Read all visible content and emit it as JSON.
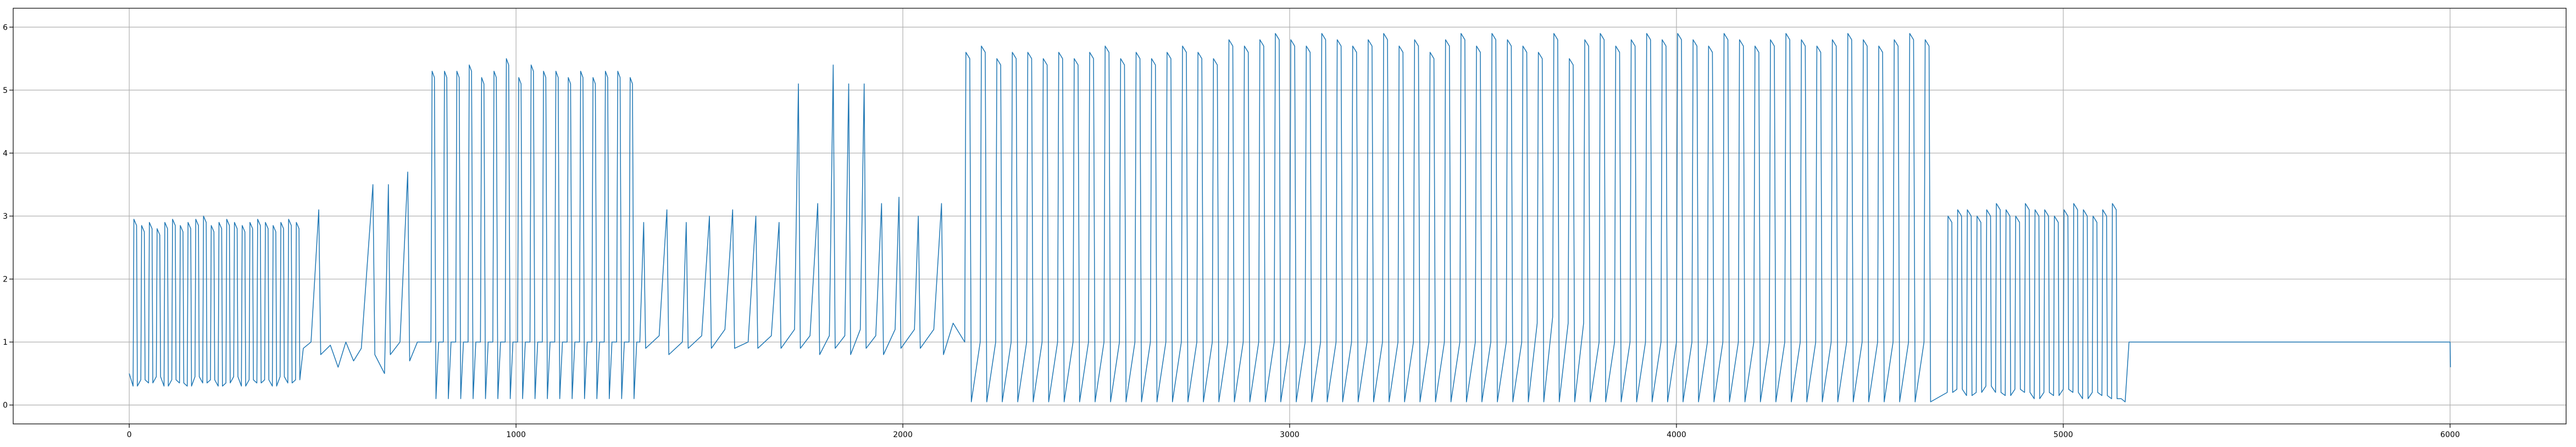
{
  "chart_data": {
    "type": "line",
    "color": "#1f77b4",
    "grid": true,
    "xlim": [
      -300,
      6300
    ],
    "xticks": [
      0,
      1000,
      2000,
      3000,
      4000,
      5000,
      6000
    ],
    "ylim": [
      -0.3,
      6.3
    ],
    "yticks": [
      0,
      1,
      2,
      3,
      4,
      5,
      6
    ],
    "x": [
      0,
      10,
      12,
      19,
      21,
      30,
      32,
      39,
      41,
      50,
      52,
      59,
      61,
      70,
      72,
      79,
      81,
      90,
      92,
      99,
      101,
      110,
      112,
      119,
      121,
      130,
      132,
      139,
      141,
      150,
      152,
      159,
      161,
      170,
      172,
      179,
      181,
      190,
      192,
      199,
      201,
      210,
      212,
      219,
      221,
      230,
      232,
      239,
      241,
      250,
      252,
      259,
      261,
      270,
      272,
      279,
      281,
      290,
      292,
      299,
      301,
      310,
      312,
      319,
      321,
      330,
      332,
      339,
      341,
      350,
      352,
      359,
      361,
      370,
      372,
      379,
      381,
      390,
      392,
      399,
      401,
      410,
      412,
      419,
      421,
      430,
      432,
      439,
      441,
      450,
      470,
      490,
      495,
      520,
      540,
      560,
      580,
      600,
      630,
      635,
      660,
      670,
      675,
      700,
      720,
      725,
      745,
      780,
      783,
      789,
      793,
      800,
      812,
      815,
      821,
      825,
      832,
      844,
      847,
      853,
      857,
      864,
      876,
      879,
      885,
      889,
      896,
      908,
      911,
      917,
      921,
      928,
      940,
      943,
      949,
      953,
      960,
      972,
      975,
      981,
      985,
      992,
      1004,
      1007,
      1013,
      1017,
      1024,
      1036,
      1039,
      1045,
      1049,
      1056,
      1068,
      1071,
      1077,
      1081,
      1088,
      1100,
      1103,
      1109,
      1113,
      1120,
      1132,
      1135,
      1141,
      1145,
      1152,
      1164,
      1167,
      1173,
      1177,
      1184,
      1196,
      1199,
      1205,
      1209,
      1216,
      1228,
      1231,
      1237,
      1241,
      1248,
      1260,
      1263,
      1269,
      1273,
      1280,
      1292,
      1295,
      1301,
      1305,
      1312,
      1320,
      1330,
      1335,
      1370,
      1390,
      1395,
      1430,
      1440,
      1445,
      1480,
      1500,
      1505,
      1540,
      1560,
      1565,
      1600,
      1620,
      1625,
      1660,
      1680,
      1685,
      1720,
      1730,
      1735,
      1760,
      1780,
      1785,
      1810,
      1820,
      1825,
      1850,
      1860,
      1865,
      1890,
      1900,
      1905,
      1930,
      1945,
      1950,
      1980,
      1990,
      1995,
      2030,
      2040,
      2045,
      2080,
      2100,
      2105,
      2130,
      2160,
      2163,
      2173,
      2177,
      2200,
      2203,
      2213,
      2217,
      2240,
      2243,
      2253,
      2257,
      2280,
      2283,
      2293,
      2297,
      2320,
      2323,
      2333,
      2337,
      2360,
      2363,
      2373,
      2377,
      2400,
      2403,
      2413,
      2417,
      2440,
      2443,
      2453,
      2457,
      2480,
      2483,
      2493,
      2497,
      2520,
      2523,
      2533,
      2537,
      2560,
      2563,
      2573,
      2577,
      2600,
      2603,
      2613,
      2617,
      2640,
      2643,
      2653,
      2657,
      2680,
      2683,
      2693,
      2697,
      2720,
      2723,
      2733,
      2737,
      2760,
      2763,
      2773,
      2777,
      2800,
      2803,
      2813,
      2817,
      2840,
      2843,
      2853,
      2857,
      2880,
      2883,
      2893,
      2897,
      2920,
      2923,
      2933,
      2937,
      2960,
      2963,
      2973,
      2977,
      3000,
      3003,
      3013,
      3017,
      3040,
      3043,
      3053,
      3057,
      3080,
      3083,
      3093,
      3097,
      3120,
      3123,
      3133,
      3137,
      3160,
      3163,
      3173,
      3177,
      3200,
      3203,
      3213,
      3217,
      3240,
      3243,
      3253,
      3257,
      3280,
      3283,
      3293,
      3297,
      3320,
      3323,
      3333,
      3337,
      3360,
      3363,
      3373,
      3377,
      3400,
      3403,
      3413,
      3417,
      3440,
      3443,
      3453,
      3457,
      3480,
      3483,
      3493,
      3497,
      3520,
      3523,
      3533,
      3537,
      3560,
      3563,
      3573,
      3577,
      3600,
      3603,
      3613,
      3617,
      3640,
      3643,
      3653,
      3657,
      3680,
      3683,
      3693,
      3697,
      3720,
      3723,
      3733,
      3737,
      3760,
      3763,
      3773,
      3777,
      3800,
      3803,
      3813,
      3817,
      3840,
      3843,
      3853,
      3857,
      3880,
      3883,
      3893,
      3897,
      3920,
      3923,
      3933,
      3937,
      3960,
      3963,
      3973,
      3977,
      4000,
      4003,
      4013,
      4017,
      4040,
      4043,
      4053,
      4057,
      4080,
      4083,
      4093,
      4097,
      4120,
      4123,
      4133,
      4137,
      4160,
      4163,
      4173,
      4177,
      4200,
      4203,
      4213,
      4217,
      4240,
      4243,
      4253,
      4257,
      4280,
      4283,
      4293,
      4297,
      4320,
      4323,
      4333,
      4337,
      4360,
      4363,
      4373,
      4377,
      4400,
      4403,
      4413,
      4417,
      4440,
      4443,
      4453,
      4457,
      4480,
      4483,
      4493,
      4497,
      4520,
      4523,
      4533,
      4537,
      4560,
      4563,
      4573,
      4577,
      4600,
      4603,
      4613,
      4617,
      4640,
      4643,
      4653,
      4657,
      4700,
      4702,
      4712,
      4714,
      4725,
      4727,
      4737,
      4739,
      4750,
      4752,
      4762,
      4764,
      4775,
      4777,
      4787,
      4789,
      4800,
      4802,
      4812,
      4814,
      4825,
      4827,
      4837,
      4839,
      4850,
      4852,
      4862,
      4864,
      4875,
      4877,
      4887,
      4889,
      4900,
      4902,
      4912,
      4914,
      4925,
      4927,
      4937,
      4939,
      4950,
      4952,
      4962,
      4964,
      4975,
      4977,
      4987,
      4989,
      5000,
      5002,
      5012,
      5014,
      5025,
      5027,
      5037,
      5039,
      5050,
      5052,
      5062,
      5064,
      5075,
      5077,
      5087,
      5089,
      5100,
      5102,
      5112,
      5114,
      5125,
      5127,
      5137,
      5139,
      5150,
      5160,
      5170,
      6000,
      6001
    ],
    "values": [
      0.5,
      0.3,
      2.95,
      2.85,
      0.3,
      0.4,
      2.85,
      2.75,
      0.4,
      0.35,
      2.9,
      2.8,
      0.35,
      0.45,
      2.8,
      2.7,
      0.45,
      0.3,
      2.9,
      2.8,
      0.3,
      0.4,
      2.95,
      2.85,
      0.4,
      0.35,
      2.85,
      2.75,
      0.35,
      0.3,
      2.9,
      2.8,
      0.3,
      0.45,
      2.95,
      2.85,
      0.45,
      0.35,
      3.0,
      2.9,
      0.35,
      0.4,
      2.85,
      2.75,
      0.4,
      0.3,
      2.9,
      2.8,
      0.3,
      0.35,
      2.95,
      2.85,
      0.35,
      0.45,
      2.9,
      2.8,
      0.45,
      0.3,
      2.85,
      2.75,
      0.3,
      0.4,
      2.9,
      2.8,
      0.4,
      0.35,
      2.95,
      2.85,
      0.35,
      0.4,
      2.9,
      2.8,
      0.4,
      0.3,
      2.85,
      2.75,
      0.3,
      0.45,
      2.9,
      2.8,
      0.45,
      0.35,
      2.95,
      2.85,
      0.35,
      0.4,
      2.9,
      2.8,
      0.4,
      0.9,
      1.0,
      3.1,
      0.8,
      0.95,
      0.6,
      1.0,
      0.7,
      0.9,
      3.5,
      0.8,
      0.5,
      3.5,
      0.8,
      1.0,
      3.7,
      0.7,
      1.0,
      1.0,
      5.3,
      5.2,
      0.1,
      1.0,
      1.0,
      5.3,
      5.2,
      0.1,
      1.0,
      1.0,
      5.3,
      5.2,
      0.1,
      1.0,
      1.0,
      5.4,
      5.3,
      0.1,
      1.0,
      1.0,
      5.2,
      5.1,
      0.1,
      1.0,
      1.0,
      5.3,
      5.2,
      0.1,
      1.0,
      1.0,
      5.5,
      5.4,
      0.1,
      1.0,
      1.0,
      5.2,
      5.1,
      0.1,
      1.0,
      1.0,
      5.4,
      5.3,
      0.1,
      1.0,
      1.0,
      5.3,
      5.2,
      0.1,
      1.0,
      1.0,
      5.3,
      5.2,
      0.1,
      1.0,
      1.0,
      5.2,
      5.1,
      0.1,
      1.0,
      1.0,
      5.3,
      5.2,
      0.1,
      1.0,
      1.0,
      5.2,
      5.1,
      0.1,
      1.0,
      1.0,
      5.3,
      5.2,
      0.1,
      1.0,
      1.0,
      5.3,
      5.2,
      0.1,
      1.0,
      1.0,
      5.2,
      5.1,
      0.1,
      1.0,
      1.0,
      2.9,
      0.9,
      1.1,
      3.1,
      0.8,
      1.0,
      2.9,
      0.9,
      1.1,
      3.0,
      0.9,
      1.2,
      3.1,
      0.9,
      1.0,
      3.0,
      0.9,
      1.1,
      2.9,
      0.9,
      1.2,
      5.1,
      0.9,
      1.1,
      3.2,
      0.8,
      1.1,
      5.4,
      0.9,
      1.1,
      5.1,
      0.8,
      1.2,
      5.1,
      0.9,
      1.1,
      3.2,
      0.8,
      1.2,
      3.3,
      0.9,
      1.2,
      3.0,
      0.9,
      1.2,
      3.2,
      0.8,
      1.3,
      1.0,
      5.6,
      5.5,
      0.05,
      1.0,
      5.7,
      5.6,
      0.05,
      1.0,
      5.5,
      5.4,
      0.05,
      1.0,
      5.6,
      5.5,
      0.05,
      1.0,
      5.6,
      5.5,
      0.05,
      1.0,
      5.5,
      5.4,
      0.05,
      1.0,
      5.6,
      5.5,
      0.05,
      1.0,
      5.5,
      5.4,
      0.05,
      1.0,
      5.6,
      5.5,
      0.05,
      1.0,
      5.7,
      5.6,
      0.05,
      1.0,
      5.5,
      5.4,
      0.05,
      1.0,
      5.6,
      5.5,
      0.05,
      1.0,
      5.5,
      5.4,
      0.05,
      1.0,
      5.6,
      5.5,
      0.05,
      1.0,
      5.7,
      5.6,
      0.05,
      1.0,
      5.6,
      5.5,
      0.05,
      1.0,
      5.5,
      5.4,
      0.05,
      1.0,
      5.8,
      5.7,
      0.05,
      1.0,
      5.7,
      5.6,
      0.05,
      1.0,
      5.8,
      5.7,
      0.05,
      1.0,
      5.9,
      5.8,
      0.05,
      1.0,
      5.8,
      5.7,
      0.05,
      1.0,
      5.7,
      5.6,
      0.05,
      1.0,
      5.9,
      5.8,
      0.05,
      1.0,
      5.8,
      5.7,
      0.05,
      1.0,
      5.7,
      5.6,
      0.05,
      1.0,
      5.8,
      5.7,
      0.05,
      1.0,
      5.9,
      5.8,
      0.05,
      1.0,
      5.7,
      5.6,
      0.05,
      1.0,
      5.8,
      5.7,
      0.05,
      1.0,
      5.6,
      5.5,
      0.05,
      1.0,
      5.8,
      5.7,
      0.05,
      1.0,
      5.9,
      5.8,
      0.05,
      1.0,
      5.7,
      5.6,
      0.05,
      1.0,
      5.9,
      5.8,
      0.05,
      1.0,
      5.8,
      5.7,
      0.05,
      1.0,
      5.7,
      5.6,
      0.05,
      1.3,
      5.6,
      5.5,
      0.05,
      1.4,
      5.9,
      5.8,
      0.05,
      1.3,
      5.5,
      5.4,
      0.05,
      1.3,
      5.8,
      5.7,
      0.05,
      1.0,
      5.9,
      5.8,
      0.05,
      1.0,
      5.7,
      5.6,
      0.05,
      1.0,
      5.8,
      5.7,
      0.05,
      1.0,
      5.9,
      5.8,
      0.05,
      1.0,
      5.8,
      5.7,
      0.05,
      1.0,
      5.9,
      5.8,
      0.05,
      1.0,
      5.8,
      5.7,
      0.05,
      1.0,
      5.7,
      5.6,
      0.05,
      1.0,
      5.9,
      5.8,
      0.05,
      1.0,
      5.8,
      5.7,
      0.05,
      1.0,
      5.7,
      5.6,
      0.05,
      1.0,
      5.8,
      5.7,
      0.05,
      1.0,
      5.9,
      5.8,
      0.05,
      1.0,
      5.8,
      5.7,
      0.05,
      1.0,
      5.7,
      5.6,
      0.05,
      1.0,
      5.8,
      5.7,
      0.05,
      1.0,
      5.9,
      5.8,
      0.05,
      1.0,
      5.8,
      5.7,
      0.05,
      1.0,
      5.7,
      5.6,
      0.05,
      1.0,
      5.8,
      5.7,
      0.05,
      1.0,
      5.9,
      5.8,
      0.05,
      1.0,
      5.8,
      5.7,
      0.05,
      0.2,
      3.0,
      2.9,
      0.2,
      0.25,
      3.1,
      3.0,
      0.25,
      0.15,
      3.1,
      3.0,
      0.15,
      0.2,
      3.0,
      2.9,
      0.2,
      0.3,
      3.1,
      3.0,
      0.3,
      0.2,
      3.2,
      3.1,
      0.2,
      0.15,
      3.1,
      3.0,
      0.15,
      0.25,
      3.0,
      2.9,
      0.25,
      0.2,
      3.2,
      3.1,
      0.2,
      0.1,
      3.1,
      3.0,
      0.1,
      0.2,
      3.1,
      3.0,
      0.2,
      0.15,
      3.0,
      2.9,
      0.15,
      0.25,
      3.1,
      3.0,
      0.25,
      0.2,
      3.2,
      3.1,
      0.2,
      0.1,
      3.1,
      3.0,
      0.1,
      0.2,
      3.0,
      2.9,
      0.2,
      0.15,
      3.1,
      3.0,
      0.15,
      0.1,
      3.2,
      3.1,
      0.1,
      0.1,
      0.05,
      1.0,
      1.0,
      0.6
    ]
  }
}
